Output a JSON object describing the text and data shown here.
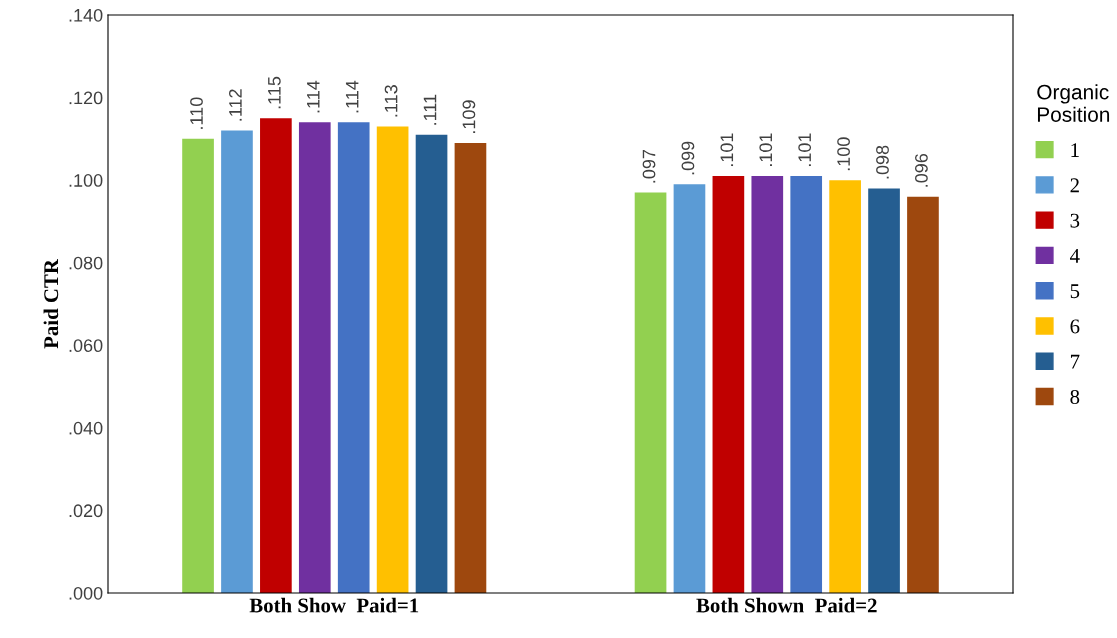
{
  "chart_data": {
    "type": "bar",
    "ylabel": "Paid CTR",
    "legend_title": "Organic\nPosition",
    "legend": "right",
    "grid": false,
    "categories": [
      "Both Show  Paid=1",
      "Both Shown  Paid=2"
    ],
    "ylim": [
      0,
      0.14
    ],
    "yticks": [
      {
        "value": 0,
        "label": ".000"
      },
      {
        "value": 0.02,
        "label": ".020"
      },
      {
        "value": 0.04,
        "label": ".040"
      },
      {
        "value": 0.06,
        "label": ".060"
      },
      {
        "value": 0.08,
        "label": ".080"
      },
      {
        "value": 0.1,
        "label": ".100"
      },
      {
        "value": 0.12,
        "label": ".120"
      },
      {
        "value": 0.14,
        "label": ".140"
      }
    ],
    "series": [
      {
        "name": "1",
        "color": "#92d050",
        "values": [
          0.11,
          0.097
        ],
        "value_labels": [
          ".110",
          ".097"
        ]
      },
      {
        "name": "2",
        "color": "#5b9bd5",
        "values": [
          0.112,
          0.099
        ],
        "value_labels": [
          ".112",
          ".099"
        ]
      },
      {
        "name": "3",
        "color": "#c00000",
        "values": [
          0.115,
          0.101
        ],
        "value_labels": [
          ".115",
          ".101"
        ]
      },
      {
        "name": "4",
        "color": "#7030a0",
        "values": [
          0.114,
          0.101
        ],
        "value_labels": [
          ".114",
          ".101"
        ]
      },
      {
        "name": "5",
        "color": "#4472c4",
        "values": [
          0.114,
          0.101
        ],
        "value_labels": [
          ".114",
          ".101"
        ]
      },
      {
        "name": "6",
        "color": "#ffc000",
        "values": [
          0.113,
          0.1
        ],
        "value_labels": [
          ".113",
          ".100"
        ]
      },
      {
        "name": "7",
        "color": "#255e91",
        "values": [
          0.111,
          0.098
        ],
        "value_labels": [
          ".111",
          ".098"
        ]
      },
      {
        "name": "8",
        "color": "#9e480e",
        "values": [
          0.109,
          0.096
        ],
        "value_labels": [
          ".109",
          ".096"
        ]
      }
    ]
  }
}
